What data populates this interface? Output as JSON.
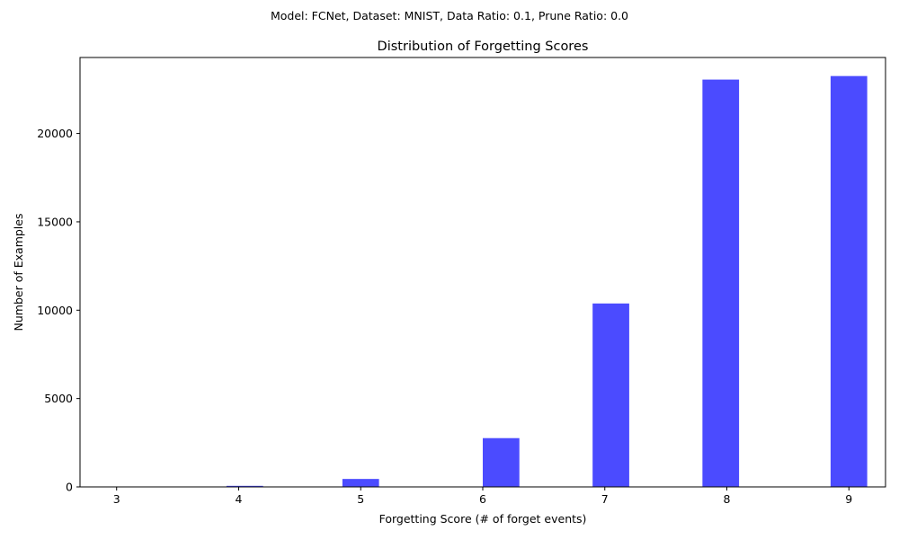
{
  "suptitle": "Model: FCNet, Dataset: MNIST, Data Ratio: 0.1, Prune Ratio: 0.0",
  "chart_data": {
    "type": "bar",
    "title": "Distribution of Forgetting Scores",
    "xlabel": "Forgetting Score (# of forget events)",
    "ylabel": "Number of Examples",
    "xlim": [
      2.7,
      9.3
    ],
    "ylim": [
      0,
      24300
    ],
    "xticks": [
      3,
      4,
      5,
      6,
      7,
      8,
      9
    ],
    "yticks": [
      0,
      5000,
      10000,
      15000,
      20000
    ],
    "bar_color": "#4b4bff",
    "bars": [
      {
        "x": 4.05,
        "value": 60
      },
      {
        "x": 5.0,
        "value": 450
      },
      {
        "x": 6.15,
        "value": 2760
      },
      {
        "x": 7.05,
        "value": 10380
      },
      {
        "x": 7.95,
        "value": 23050
      },
      {
        "x": 9.0,
        "value": 23250
      }
    ],
    "bar_width": 0.3,
    "grid": false,
    "legend": "none"
  }
}
